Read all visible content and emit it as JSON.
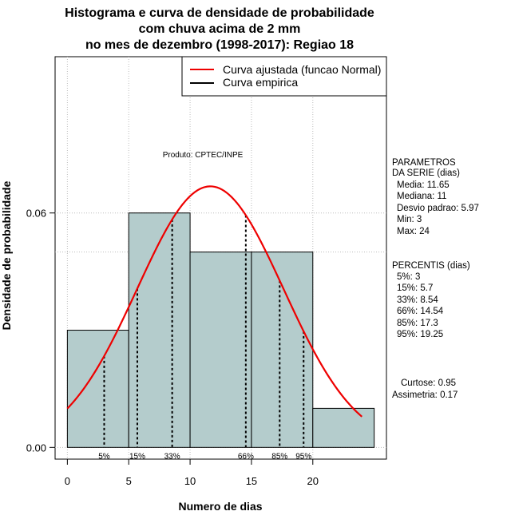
{
  "chart_data": {
    "type": "histogram",
    "title_lines": [
      "Histograma e curva de densidade de probabilidade",
      "com chuva acima de 2 mm",
      "no mes de dezembro (1998-2017): Regiao 18"
    ],
    "xlabel": "Numero de dias",
    "ylabel": "Densidade de probabilidade",
    "xlim": [
      -1,
      26
    ],
    "ylim": [
      -0.003,
      0.1
    ],
    "x_ticks": [
      0,
      5,
      10,
      15,
      20
    ],
    "x_tick_labels": [
      "0",
      "5",
      "10",
      "15",
      "20"
    ],
    "y_ticks": [
      0.0,
      0.06
    ],
    "y_tick_labels": [
      "0.00",
      "0.06"
    ],
    "grid": true,
    "reference_line_y": 0.05,
    "bins": [
      {
        "from": 0,
        "to": 5,
        "density": 0.03
      },
      {
        "from": 5,
        "to": 10,
        "density": 0.06
      },
      {
        "from": 10,
        "to": 15,
        "density": 0.05
      },
      {
        "from": 15,
        "to": 20,
        "density": 0.05
      },
      {
        "from": 20,
        "to": 25,
        "density": 0.01
      }
    ],
    "normal_curve": {
      "mean": 11.65,
      "sd": 5.97,
      "x_from": 0,
      "x_to": 24,
      "color": "#ee0000"
    },
    "percentile_markers": [
      {
        "label": "5%",
        "x": 3
      },
      {
        "label": "15%",
        "x": 5.7
      },
      {
        "label": "33%",
        "x": 8.54
      },
      {
        "label": "66%",
        "x": 14.54
      },
      {
        "label": "85%",
        "x": 17.3
      },
      {
        "label": "95%",
        "x": 19.25
      }
    ],
    "legend": {
      "position": "top-right",
      "items": [
        {
          "label": "Curva ajustada (funcao Normal)",
          "color": "#ee0000"
        },
        {
          "label": "Curva empirica",
          "color": "#000000"
        }
      ]
    },
    "annotation": "Produto: CPTEC/INPE",
    "bar_fill": "#b4cccc",
    "side_panel": {
      "params_title_1": "PARAMETROS",
      "params_title_2": "DA SERIE (dias)",
      "params": [
        "Media: 11.65",
        "Mediana: 11",
        "Desvio padrao: 5.97",
        "Min: 3",
        "Max: 24"
      ],
      "percentis_title": "PERCENTIS (dias)",
      "percentis": [
        "5%: 3",
        "15%: 5.7",
        "33%: 8.54",
        "66%: 14.54",
        "85%: 17.3",
        "95%: 19.25"
      ],
      "curtose": "Curtose: 0.95",
      "assimetria": "Assimetria: 0.17"
    }
  }
}
